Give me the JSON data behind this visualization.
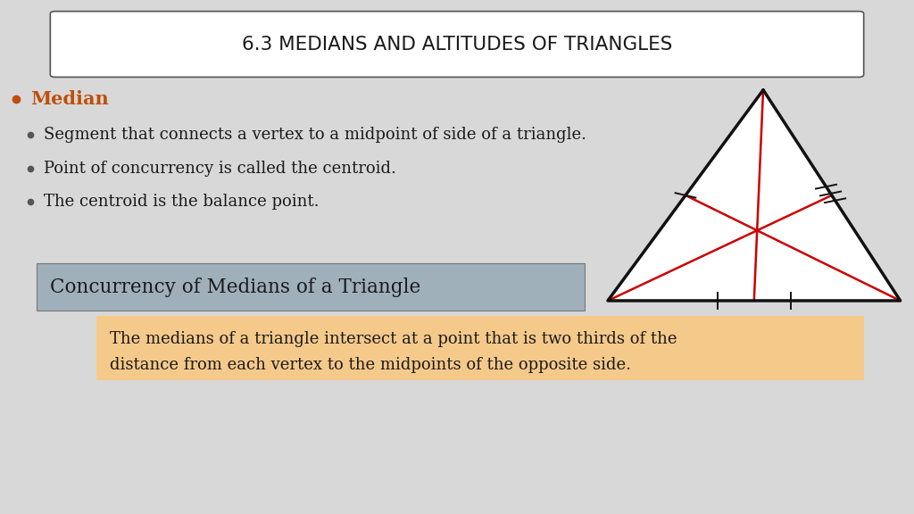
{
  "title": "6.3 MEDIANS AND ALTITUDES OF TRIANGLES",
  "bg_color": "#d8d8d8",
  "title_box_color": "#ffffff",
  "title_box_edge": "#555555",
  "bullet_main": "Median",
  "bullet_main_color": "#bf4f0a",
  "bullet_dot_color": "#555555",
  "bullets": [
    "Segment that connects a vertex to a midpoint of side of a triangle.",
    "Point of concurrency is called the centroid.",
    "The centroid is the balance point."
  ],
  "theorem_title": "Concurrency of Medians of a Triangle",
  "theorem_title_bg": "#9fb0bb",
  "theorem_body_line1": "The medians of a triangle intersect at a point that is two thirds of the",
  "theorem_body_line2": "distance from each vertex to the midpoints of the opposite side.",
  "theorem_body_bg": "#f5c98a",
  "median_color": "#cc0000",
  "triangle_color": "#111111",
  "triangle_fill": "#ffffff",
  "tick_color": "#111111"
}
